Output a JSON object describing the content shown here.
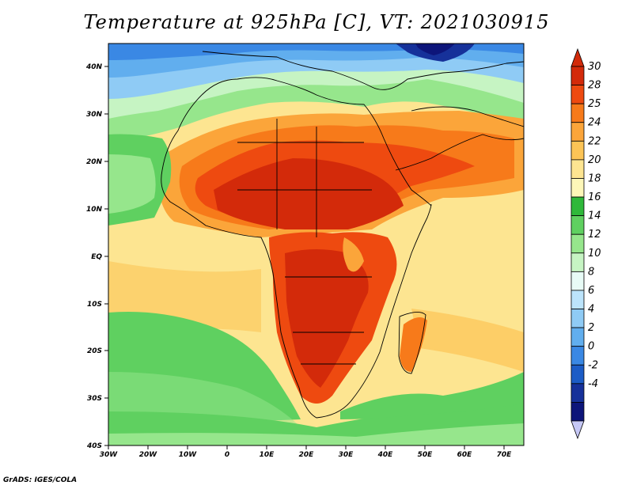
{
  "title": "Temperature at 925hPa [C], VT: 2021030915",
  "credit": "GrADS: IGES/COLA",
  "lon_labels": [
    "30W",
    "20W",
    "10W",
    "0",
    "10E",
    "20E",
    "30E",
    "40E",
    "50E",
    "60E",
    "70E"
  ],
  "lat_labels": [
    "40N",
    "30N",
    "20N",
    "10N",
    "EQ",
    "10S",
    "20S",
    "30S",
    "40S"
  ],
  "colorbar": {
    "labels": [
      "30",
      "28",
      "25",
      "24",
      "22",
      "20",
      "18",
      "16",
      "14",
      "12",
      "10",
      "8",
      "6",
      "4",
      "2",
      "0",
      "-2",
      "-4"
    ],
    "colors": [
      "#d32a0a",
      "#ee4a10",
      "#f77a1a",
      "#fba53a",
      "#fcc456",
      "#fde591",
      "#fdf7b8",
      "#2fb83a",
      "#5fd060",
      "#96e68c",
      "#c6f4c3",
      "#e8fbf6",
      "#bce4fb",
      "#8fcbf5",
      "#61aeee",
      "#3a88e4",
      "#1c5cc6",
      "#16319a",
      "#0d157a"
    ],
    "low_end_color": "#c6c8f6",
    "high_end_color": "#d22a0a"
  }
}
